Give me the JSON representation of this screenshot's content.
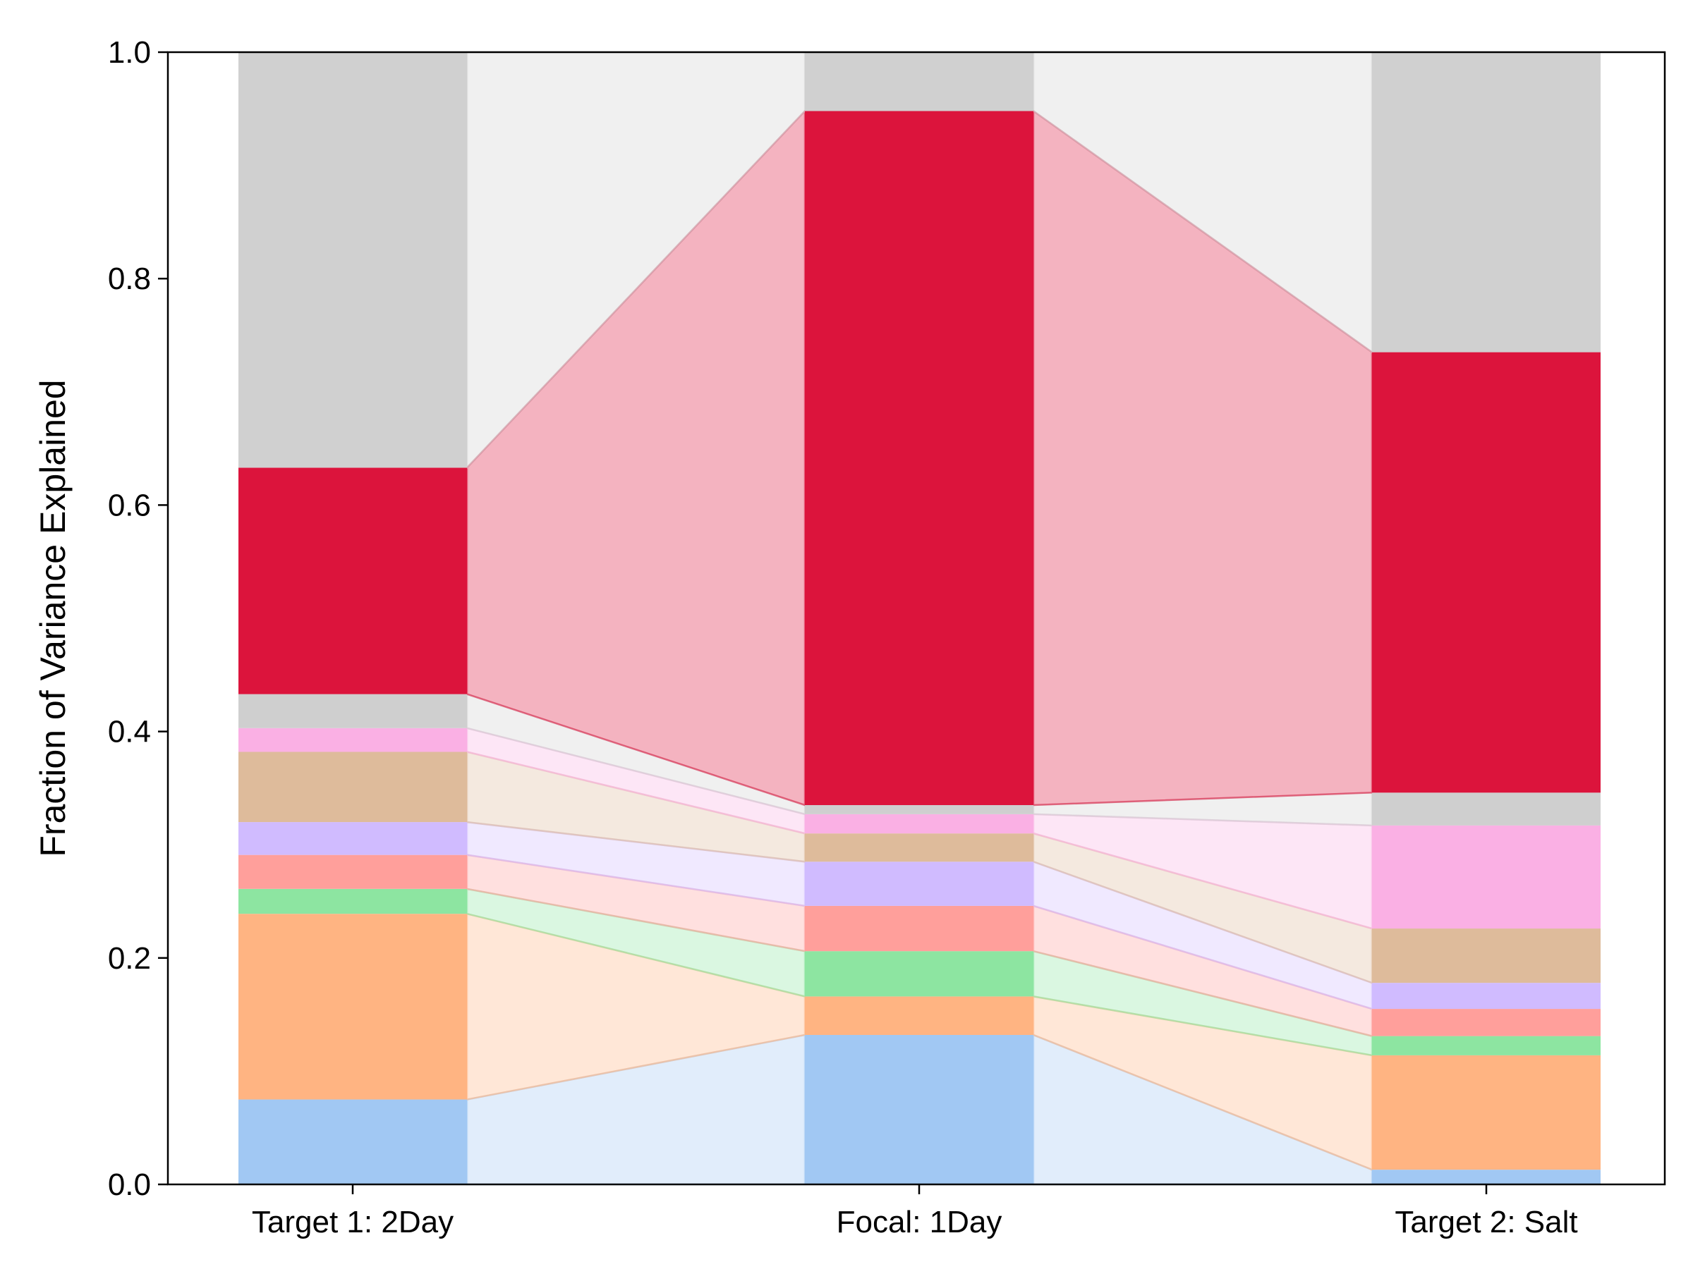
{
  "chart_data": {
    "type": "bar",
    "stacked": true,
    "connecting_bands": true,
    "ylabel": "Fraction of Variance Explained",
    "xlabel": "",
    "ylim": [
      0,
      1
    ],
    "yticks": [
      "0.0",
      "0.2",
      "0.4",
      "0.6",
      "0.8",
      "1.0"
    ],
    "categories": [
      "Target 1: 2Day",
      "Focal: 1Day",
      "Target 2: Salt"
    ],
    "series": [
      {
        "color": "#a1c8f3",
        "values": [
          0.075,
          0.132,
          0.013
        ]
      },
      {
        "color": "#ffb482",
        "values": [
          0.164,
          0.034,
          0.101
        ]
      },
      {
        "color": "#8de5a1",
        "values": [
          0.022,
          0.04,
          0.017
        ]
      },
      {
        "color": "#ff9f9b",
        "values": [
          0.03,
          0.04,
          0.024
        ]
      },
      {
        "color": "#d0bbff",
        "values": [
          0.029,
          0.039,
          0.023
        ]
      },
      {
        "color": "#debb9b",
        "values": [
          0.062,
          0.025,
          0.048
        ]
      },
      {
        "color": "#fab0e4",
        "values": [
          0.021,
          0.017,
          0.091
        ]
      },
      {
        "color": "#cfcfcf",
        "values": [
          0.03,
          0.008,
          0.029
        ]
      },
      {
        "color": "#dc143c",
        "values": [
          0.2,
          0.613,
          0.389
        ]
      },
      {
        "color": "#d0d0d0",
        "values": [
          0.367,
          0.052,
          0.265
        ]
      }
    ],
    "grid": false,
    "legend": "none"
  }
}
